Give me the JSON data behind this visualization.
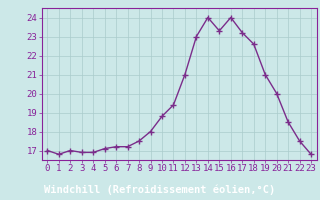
{
  "x": [
    0,
    1,
    2,
    3,
    4,
    5,
    6,
    7,
    8,
    9,
    10,
    11,
    12,
    13,
    14,
    15,
    16,
    17,
    18,
    19,
    20,
    21,
    22,
    23
  ],
  "y": [
    17.0,
    16.8,
    17.0,
    16.9,
    16.9,
    17.1,
    17.2,
    17.2,
    17.5,
    18.0,
    18.8,
    19.4,
    21.0,
    23.0,
    24.0,
    23.3,
    24.0,
    23.2,
    22.6,
    21.0,
    20.0,
    18.5,
    17.5,
    16.8
  ],
  "line_color": "#7B2D8B",
  "marker": "+",
  "markersize": 4,
  "linewidth": 1.0,
  "xlabel": "Windchill (Refroidissement éolien,°C)",
  "ylim": [
    16.5,
    24.5
  ],
  "xlim": [
    -0.5,
    23.5
  ],
  "yticks": [
    17,
    18,
    19,
    20,
    21,
    22,
    23,
    24
  ],
  "xticks": [
    0,
    1,
    2,
    3,
    4,
    5,
    6,
    7,
    8,
    9,
    10,
    11,
    12,
    13,
    14,
    15,
    16,
    17,
    18,
    19,
    20,
    21,
    22,
    23
  ],
  "tick_fontsize": 6.5,
  "xlabel_fontsize": 7.5,
  "bg_color": "#cce8e8",
  "plot_bg_color": "#cce8e8",
  "grid_color": "#aacccc",
  "line_band_color": "#882299",
  "text_color": "#882299",
  "spine_color": "#882299"
}
